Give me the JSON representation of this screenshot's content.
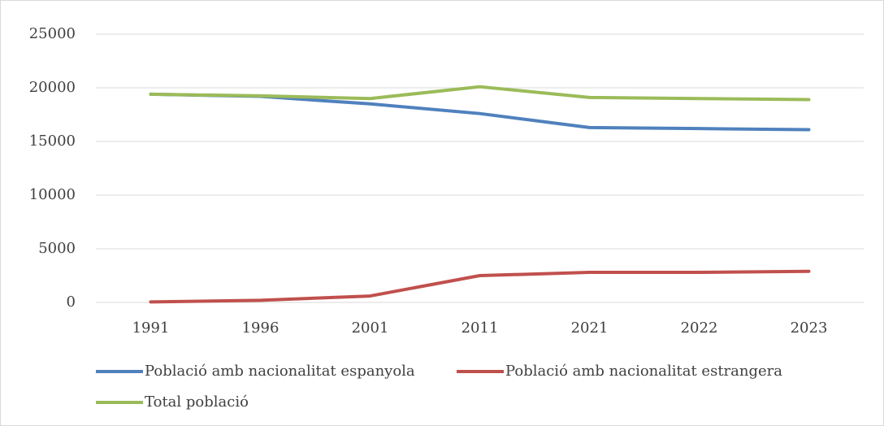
{
  "chart_data": {
    "type": "line",
    "categories": [
      "1991",
      "1996",
      "2001",
      "2011",
      "2021",
      "2022",
      "2023"
    ],
    "series": [
      {
        "name": "Població amb nacionalitat espanyola",
        "color": "#4f81bd",
        "values": [
          19400,
          19200,
          18500,
          17600,
          16300,
          16200,
          16100
        ]
      },
      {
        "name": "Població amb nacionalitat estrangera",
        "color": "#c0504d",
        "values": [
          50,
          200,
          600,
          2500,
          2800,
          2800,
          2900
        ]
      },
      {
        "name": "Total població",
        "color": "#9bbb59",
        "values": [
          19400,
          19250,
          19000,
          20100,
          19100,
          19000,
          18900
        ]
      }
    ],
    "ylim": [
      0,
      25000
    ],
    "yticks": [
      0,
      5000,
      10000,
      15000,
      20000,
      25000
    ],
    "grid": true,
    "legend": "bottom"
  }
}
